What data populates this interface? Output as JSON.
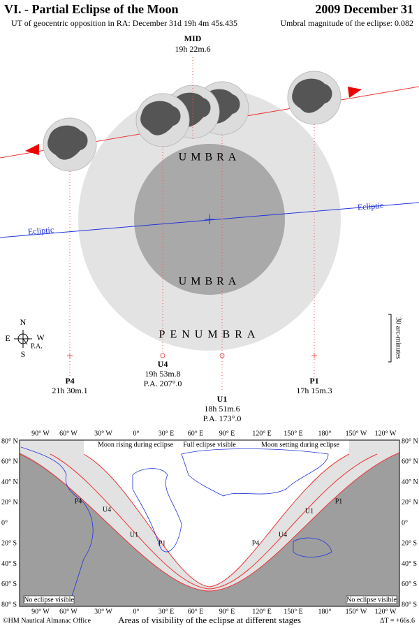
{
  "header": {
    "title": "VI. - Partial Eclipse of the Moon",
    "subtitle": "UT of geocentric opposition in RA: December 31d 19h 4m 45s.435",
    "date": "2009 December 31",
    "magnitude": "Umbral magnitude of the eclipse: 0.082"
  },
  "diagram": {
    "mid": {
      "label": "MID",
      "time": "19h 22m.6"
    },
    "contacts": [
      {
        "label": "P4",
        "time": "21h 30m.1"
      },
      {
        "label": "U4",
        "time": "19h 53m.8",
        "pa": "P.A. 207°.0"
      },
      {
        "label": "U1",
        "time": "18h 51m.6",
        "pa": "P.A. 173°.0"
      },
      {
        "label": "P1",
        "time": "17h 15m.3"
      }
    ],
    "umbra_top": "UMBRA",
    "umbra_bottom": "UMBRA",
    "penumbra": "PENUMBRA",
    "ecliptic_left": "Ecliptic",
    "ecliptic_right": "Ecliptic",
    "compass": {
      "n": "N",
      "s": "S",
      "e": "E",
      "w": "W",
      "pa": "P.A."
    },
    "scale": "30 arc-minutes"
  },
  "map": {
    "lon_labels": [
      "90° W",
      "60° W",
      "30° W",
      "0°",
      "30° E",
      "60° E",
      "90° E",
      "120° E",
      "150° E",
      "180°",
      "150° W",
      "120° W"
    ],
    "lat_labels": [
      "80° N",
      "60° N",
      "40° N",
      "20° N",
      "0°",
      "20° S",
      "40° S",
      "60° S",
      "80° S"
    ],
    "regions": [
      "Moon rising during eclipse",
      "Full eclipse visible",
      "Moon setting during eclipse"
    ],
    "no_eclipse": "No eclipse visible",
    "curve_labels": [
      "P4",
      "U4",
      "U1",
      "P1",
      "P1",
      "U1",
      "U4",
      "P4"
    ],
    "caption": "Areas of visibility of the eclipse at different stages"
  },
  "footer": {
    "credit": "©HM Nautical Almanac Office",
    "delta_t": "ΔT = +66s.6"
  }
}
